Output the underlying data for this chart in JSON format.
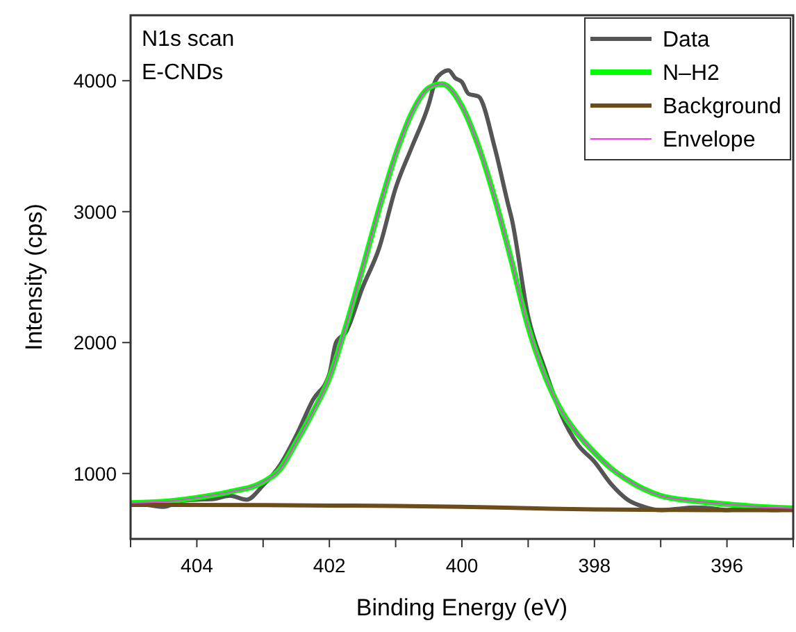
{
  "chart_data": {
    "type": "line",
    "xlabel": "Binding Energy (eV)",
    "ylabel": "Intensity (cps)",
    "annotations": [
      "N1s scan",
      "E-CNDs"
    ],
    "xlim": [
      405,
      395
    ],
    "xticks": [
      {
        "value": 405,
        "label": null
      },
      404,
      {
        "value": 403,
        "label": null
      },
      402,
      {
        "value": 401,
        "label": null
      },
      400,
      {
        "value": 399,
        "label": null
      },
      398,
      {
        "value": 397,
        "label": null
      },
      396,
      {
        "value": 395,
        "label": null
      }
    ],
    "ylim": [
      500,
      4500
    ],
    "yticks": [
      1000,
      2000,
      3000,
      4000
    ],
    "grid": false,
    "legend": "top right",
    "marker": "none",
    "line_style": "solid",
    "series": [
      {
        "name": "Data",
        "color": "#555555",
        "x": [
          405,
          404.75,
          404.5,
          404.25,
          404,
          403.75,
          403.5,
          403.25,
          403,
          402.75,
          402.5,
          402.25,
          402,
          401.9,
          401.75,
          401.5,
          401.25,
          401,
          400.75,
          400.5,
          400.4,
          400.3,
          400.2,
          400.1,
          400,
          399.9,
          399.75,
          399.5,
          399.3,
          399.25,
          399,
          398.75,
          398.5,
          398.25,
          398,
          397.75,
          397.5,
          397.25,
          397,
          396.75,
          396.5,
          396.25,
          396,
          395.75,
          395.5,
          395.25,
          395
        ],
        "values": [
          770,
          760,
          745,
          790,
          800,
          805,
          830,
          800,
          910,
          1060,
          1290,
          1560,
          1760,
          2000,
          2080,
          2420,
          2720,
          3180,
          3500,
          3820,
          4000,
          4060,
          4080,
          4020,
          3990,
          3900,
          3880,
          3480,
          3050,
          2950,
          2200,
          1800,
          1450,
          1220,
          1090,
          920,
          800,
          745,
          720,
          730,
          740,
          735,
          720,
          730,
          725,
          720,
          740
        ]
      },
      {
        "name": "N–H2",
        "color": "#00ff00",
        "x": [
          405,
          404.5,
          404,
          403.5,
          403,
          402.75,
          402.5,
          402.25,
          402,
          401.75,
          401.5,
          401.25,
          401,
          400.75,
          400.5,
          400.3,
          400,
          399.75,
          399.5,
          399.25,
          399,
          398.75,
          398.5,
          398.25,
          398,
          397.75,
          397.5,
          397.25,
          397,
          396.5,
          396,
          395.5,
          395
        ],
        "values": [
          775,
          785,
          815,
          860,
          935,
          1030,
          1240,
          1470,
          1730,
          2125,
          2565,
          3020,
          3435,
          3760,
          3945,
          3975,
          3805,
          3500,
          3095,
          2620,
          2120,
          1750,
          1480,
          1300,
          1160,
          1040,
          950,
          880,
          830,
          790,
          765,
          745,
          735
        ]
      },
      {
        "name": "Background",
        "color": "#6b4c1a",
        "x": [
          405,
          403,
          402,
          401,
          400,
          399,
          398,
          397,
          396,
          395
        ],
        "values": [
          760,
          758,
          755,
          752,
          745,
          735,
          725,
          722,
          720,
          720
        ]
      },
      {
        "name": "Envelope",
        "color": "#ff33ff",
        "x": [
          405,
          404.5,
          404,
          403.5,
          403,
          402.75,
          402.5,
          402.25,
          402,
          401.75,
          401.5,
          401.25,
          401,
          400.75,
          400.5,
          400.3,
          400,
          399.75,
          399.5,
          399.25,
          399,
          398.75,
          398.5,
          398.25,
          398,
          397.75,
          397.5,
          397.25,
          397,
          396.5,
          396,
          395.5,
          395
        ],
        "values": [
          775,
          785,
          815,
          860,
          935,
          1030,
          1240,
          1470,
          1730,
          2125,
          2565,
          3020,
          3435,
          3760,
          3945,
          3975,
          3805,
          3500,
          3095,
          2620,
          2120,
          1750,
          1480,
          1300,
          1160,
          1040,
          950,
          880,
          830,
          790,
          765,
          745,
          735
        ]
      }
    ]
  }
}
